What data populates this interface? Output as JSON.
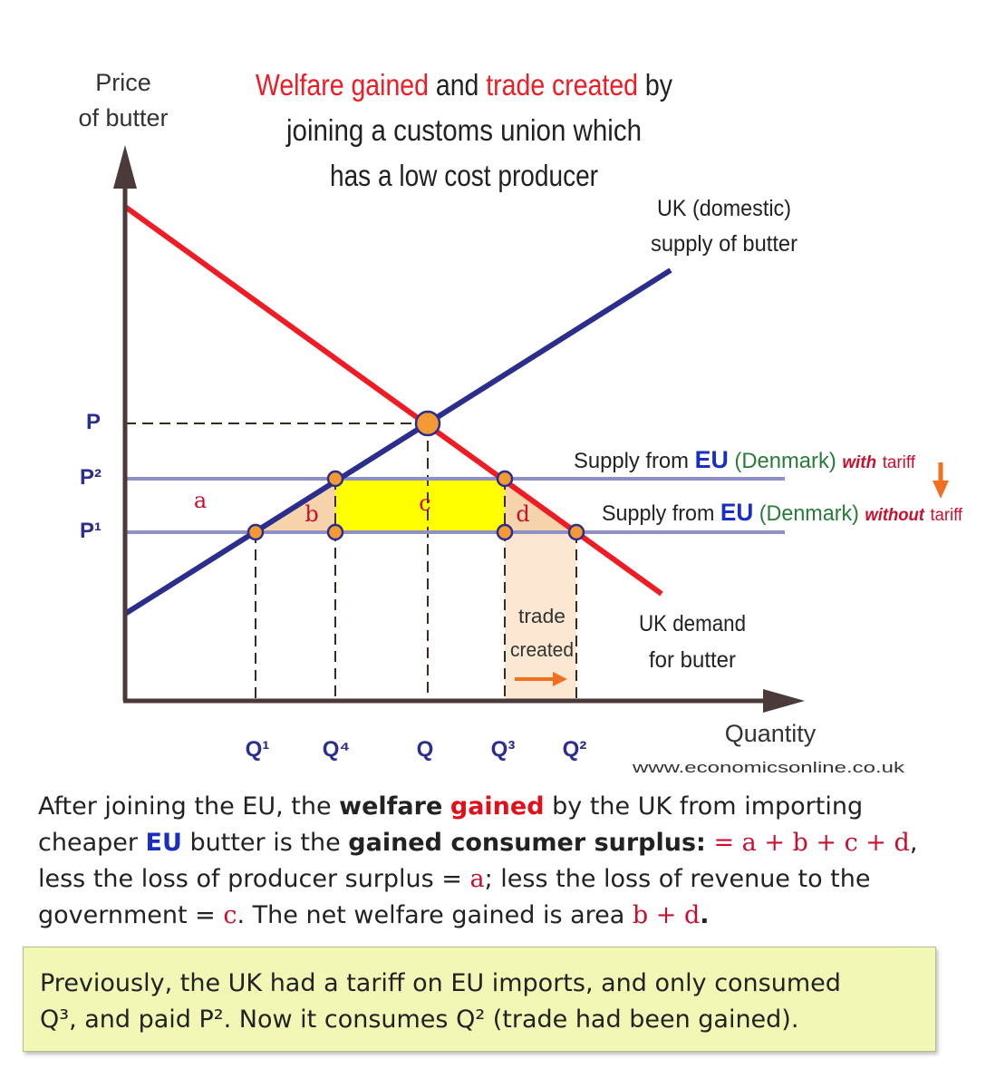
{
  "title": {
    "w1": "Welfare gained",
    "w2": "and",
    "w3": "trade created",
    "w4": "by",
    "line2": "joining  a customs union which",
    "line3": "has a low cost producer"
  },
  "axes": {
    "y_label_1": "Price",
    "y_label_2": "of butter",
    "x_label": "Quantity"
  },
  "price_labels": [
    "P",
    "P²",
    "P¹"
  ],
  "quantity_labels": [
    "Q¹",
    "Q⁴",
    "Q",
    "Q³",
    "Q²"
  ],
  "area_labels": [
    "a",
    "b",
    "c",
    "d"
  ],
  "curves": {
    "uk_supply_1": "UK  (domestic)",
    "uk_supply_2": "supply of butter",
    "uk_demand_1": "UK demand",
    "uk_demand_2": "for butter",
    "eu_supply_prefix": "Supply from",
    "eu": "EU",
    "denmark": "(Denmark)",
    "with": "with",
    "without": "without",
    "tariff": "tariff"
  },
  "trade_created": {
    "line1": "trade",
    "line2": "created"
  },
  "source": "www.economicsonline.co.uk",
  "explanation": {
    "l1a": "After joining the EU, the ",
    "l1b": "welfare",
    "l1c": "gained",
    "l1d": " by the UK from importing",
    "l2a": "cheaper ",
    "l2b": "EU",
    "l2c": " butter is the ",
    "l2d": "gained consumer surplus:",
    "l2e": " = a + b + c + d",
    "l2f": ",",
    "l3a": "less the loss of producer surplus = ",
    "l3b": "a",
    "l3c": "; less the loss of revenue to the",
    "l4a": "government = ",
    "l4b": "c",
    "l4c": ". The net welfare gained is area ",
    "l4d": "b + d",
    "l4e": "."
  },
  "note": {
    "l1": "Previously, the UK had a tariff on EU imports, and only consumed",
    "l2a": "Q³,  and paid P². Now it consumes Q² (trade had been gained)."
  },
  "colors": {
    "supply": "#2b2e8c",
    "demand": "#ee1c25",
    "price_line": "#8f91c6",
    "area_c": "#ffff00",
    "area_bd": "#f7d4ac",
    "point": "#f39a35",
    "eu_green": "#2a7a3a",
    "eu_blue": "#1a2fbf"
  }
}
